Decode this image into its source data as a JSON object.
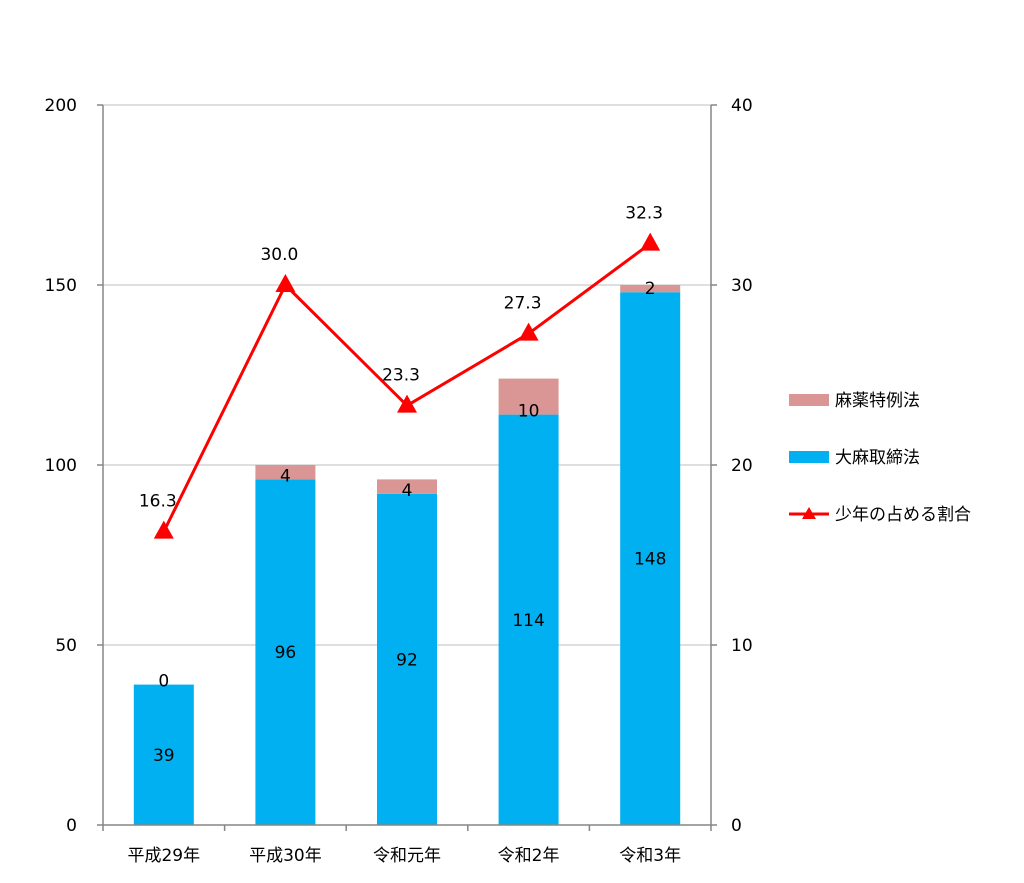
{
  "chart_data": {
    "type": "bar",
    "stacked": true,
    "categories": [
      "平成29年",
      "平成30年",
      "令和元年",
      "令和2年",
      "令和3年"
    ],
    "series": [
      {
        "name": "大麻取締法",
        "type": "bar",
        "axis": "left",
        "color": "#00B0F0",
        "values": [
          39,
          96,
          92,
          114,
          148
        ]
      },
      {
        "name": "麻薬特例法",
        "type": "bar",
        "axis": "left",
        "color": "#D99694",
        "values": [
          0,
          4,
          4,
          10,
          2
        ]
      },
      {
        "name": "少年の占める割合",
        "type": "line",
        "axis": "right",
        "color": "#FF0000",
        "marker": "triangle",
        "values": [
          16.3,
          30.0,
          23.3,
          27.3,
          32.3
        ]
      }
    ],
    "y_left": {
      "min": 0,
      "max": 200,
      "ticks": [
        0,
        50,
        100,
        150,
        200
      ]
    },
    "y_right": {
      "min": 0,
      "max": 40,
      "ticks": [
        0,
        10,
        20,
        30,
        40
      ]
    },
    "grid": true,
    "legend_position": "right",
    "legend_order": [
      "麻薬特例法",
      "大麻取締法",
      "少年の占める割合"
    ],
    "title": "",
    "xlabel": "",
    "ylabel": ""
  }
}
